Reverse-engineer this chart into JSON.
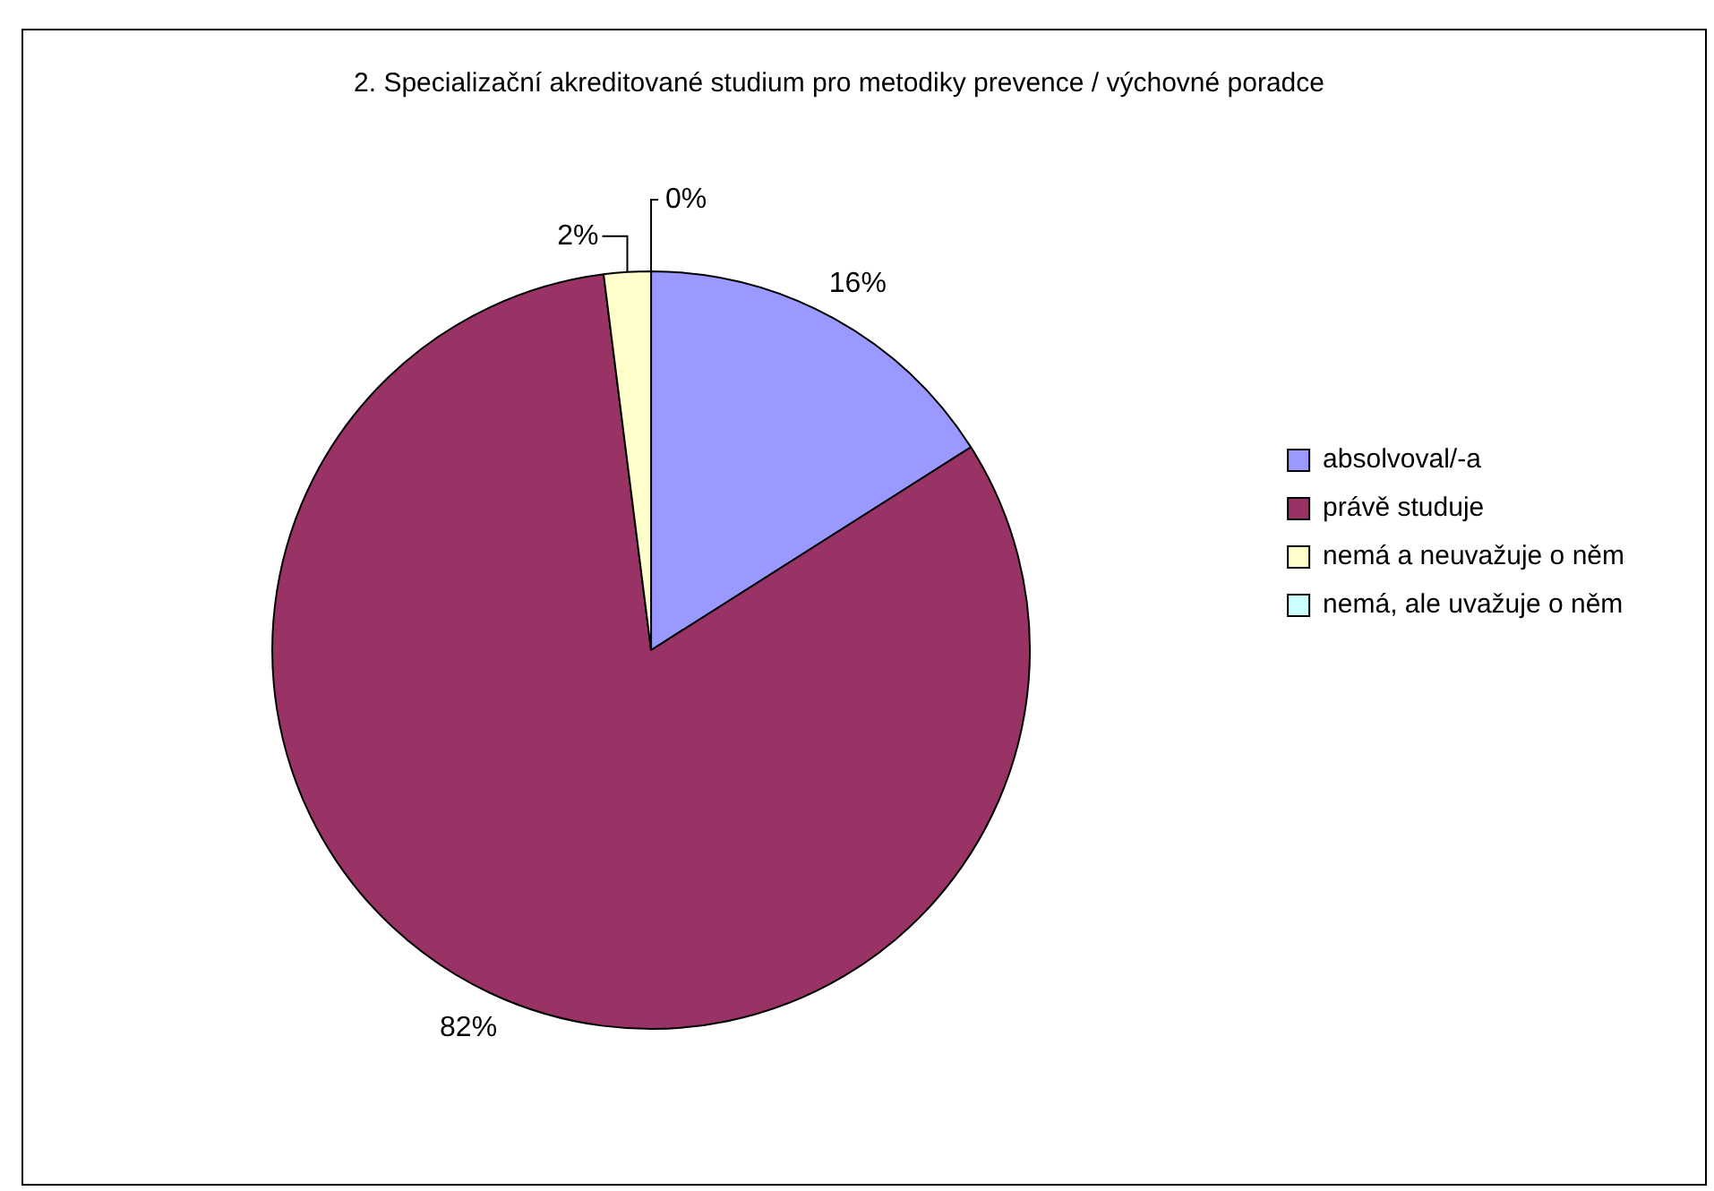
{
  "chart_data": {
    "type": "pie",
    "title": "2. Specializační akreditované studium pro metodiky prevence / výchovné poradce",
    "categories": [
      "absolvoval/-a",
      "právě studuje",
      "nemá a neuvažuje o něm",
      "nemá, ale uvažuje o něm"
    ],
    "values": [
      16,
      82,
      2,
      0
    ],
    "colors": [
      "#9999ff",
      "#993366",
      "#ffffcc",
      "#ccffff"
    ],
    "value_labels": [
      "16%",
      "82%",
      "2%",
      "0%"
    ],
    "legend": "right"
  }
}
